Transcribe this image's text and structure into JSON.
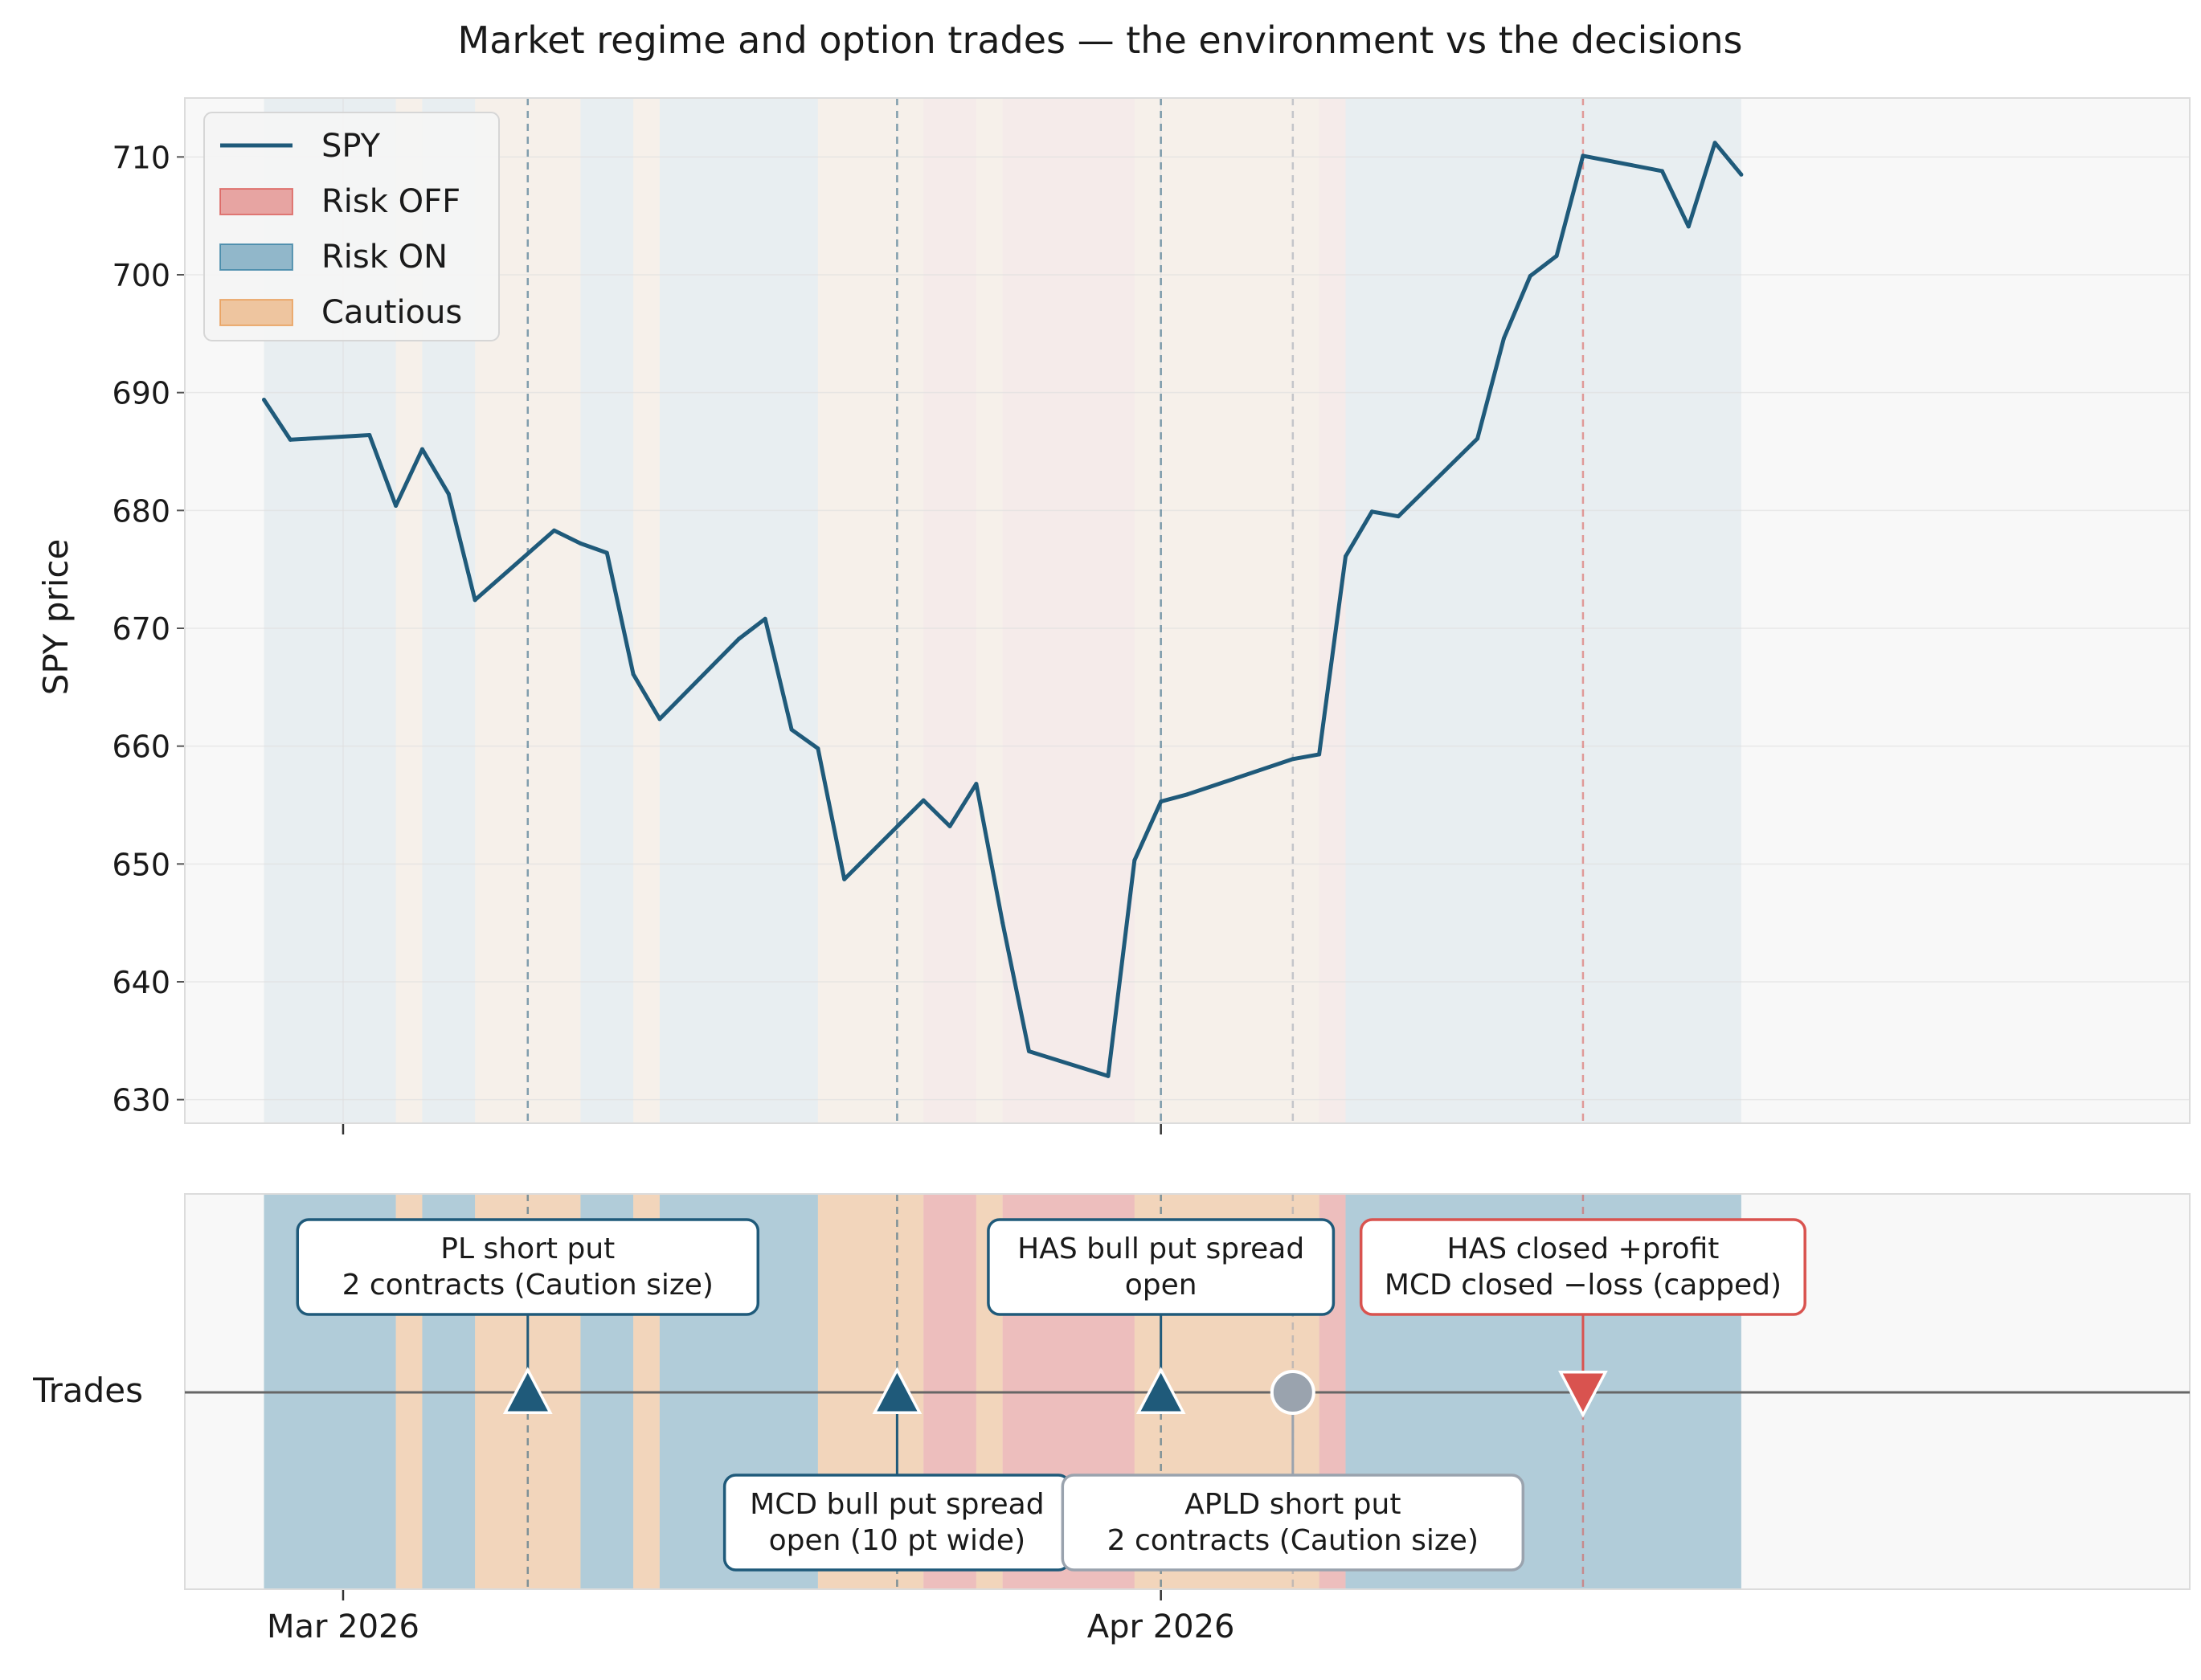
{
  "chart_data": {
    "type": "line",
    "title": "Market regime and option trades — the environment vs the decisions",
    "ylabel": "SPY price",
    "trades_label": "Trades",
    "ylim": [
      628,
      715
    ],
    "xlim": [
      "2026-02-23",
      "2026-05-10"
    ],
    "yticks": [
      630,
      640,
      650,
      660,
      670,
      680,
      690,
      700,
      710
    ],
    "xticks": [
      {
        "date": "2026-03-01",
        "label": "Mar 2026"
      },
      {
        "date": "2026-04-01",
        "label": "Apr 2026"
      }
    ],
    "grid": true,
    "legend": {
      "placement": "top-left",
      "entries": [
        {
          "label": "SPY",
          "kind": "line",
          "color": "#1f5a7a"
        },
        {
          "label": "Risk OFF",
          "kind": "patch",
          "color": "#d9534f"
        },
        {
          "label": "Risk ON",
          "kind": "patch",
          "color": "#2e7aa0"
        },
        {
          "label": "Cautious",
          "kind": "patch",
          "color": "#e8964a"
        }
      ]
    },
    "colors": {
      "line": "#1f5a7a",
      "risk_off": "#d9534f",
      "risk_on": "#2e7aa0",
      "cautious": "#e8964a",
      "neutral_trade": "#9aa3ae",
      "background": "#f8f8f8"
    },
    "regimes": [
      {
        "start": "2026-02-26",
        "end": "2026-03-03",
        "regime": "risk_on"
      },
      {
        "start": "2026-03-03",
        "end": "2026-03-04",
        "regime": "cautious"
      },
      {
        "start": "2026-03-04",
        "end": "2026-03-06",
        "regime": "risk_on"
      },
      {
        "start": "2026-03-06",
        "end": "2026-03-10",
        "regime": "cautious"
      },
      {
        "start": "2026-03-10",
        "end": "2026-03-12",
        "regime": "risk_on"
      },
      {
        "start": "2026-03-12",
        "end": "2026-03-13",
        "regime": "cautious"
      },
      {
        "start": "2026-03-13",
        "end": "2026-03-19",
        "regime": "risk_on"
      },
      {
        "start": "2026-03-19",
        "end": "2026-03-23",
        "regime": "cautious"
      },
      {
        "start": "2026-03-23",
        "end": "2026-03-25",
        "regime": "risk_off"
      },
      {
        "start": "2026-03-25",
        "end": "2026-03-26",
        "regime": "cautious"
      },
      {
        "start": "2026-03-26",
        "end": "2026-03-31",
        "regime": "risk_off"
      },
      {
        "start": "2026-03-31",
        "end": "2026-04-07",
        "regime": "cautious"
      },
      {
        "start": "2026-04-07",
        "end": "2026-04-08",
        "regime": "risk_off"
      },
      {
        "start": "2026-04-08",
        "end": "2026-04-23",
        "regime": "risk_on"
      }
    ],
    "series": [
      {
        "name": "SPY",
        "x": [
          "2026-02-26",
          "2026-02-27",
          "2026-03-02",
          "2026-03-03",
          "2026-03-04",
          "2026-03-05",
          "2026-03-06",
          "2026-03-09",
          "2026-03-10",
          "2026-03-11",
          "2026-03-12",
          "2026-03-13",
          "2026-03-16",
          "2026-03-17",
          "2026-03-18",
          "2026-03-19",
          "2026-03-20",
          "2026-03-23",
          "2026-03-24",
          "2026-03-25",
          "2026-03-26",
          "2026-03-27",
          "2026-03-30",
          "2026-03-31",
          "2026-04-01",
          "2026-04-02",
          "2026-04-06",
          "2026-04-07",
          "2026-04-08",
          "2026-04-09",
          "2026-04-10",
          "2026-04-13",
          "2026-04-14",
          "2026-04-15",
          "2026-04-16",
          "2026-04-17",
          "2026-04-20",
          "2026-04-21",
          "2026-04-22",
          "2026-04-23"
        ],
        "y": [
          689.4,
          686.0,
          686.4,
          680.4,
          685.2,
          681.4,
          672.4,
          678.3,
          677.2,
          676.4,
          666.1,
          662.3,
          669.1,
          670.8,
          661.4,
          659.8,
          648.7,
          655.4,
          653.2,
          656.8,
          645.0,
          634.1,
          632.0,
          650.3,
          655.3,
          655.9,
          658.9,
          659.3,
          676.1,
          679.9,
          679.5,
          686.1,
          694.6,
          699.9,
          701.6,
          710.1,
          708.8,
          704.1,
          711.2,
          708.5
        ]
      }
    ],
    "trades": [
      {
        "date": "2026-03-08",
        "marker": "triangle-up",
        "color": "#1f5a7a",
        "label_pos": "above",
        "label": [
          "PL short put",
          "2 contracts (Caution size)"
        ]
      },
      {
        "date": "2026-03-22",
        "marker": "triangle-up",
        "color": "#1f5a7a",
        "label_pos": "below",
        "label": [
          "MCD bull put spread",
          "open (10 pt wide)"
        ]
      },
      {
        "date": "2026-04-01",
        "marker": "triangle-up",
        "color": "#1f5a7a",
        "label_pos": "above",
        "label": [
          "HAS bull put spread",
          "open"
        ]
      },
      {
        "date": "2026-04-06",
        "marker": "circle",
        "color": "#9aa3ae",
        "label_pos": "below",
        "label": [
          "APLD short put",
          "2 contracts (Caution size)"
        ]
      },
      {
        "date": "2026-04-17",
        "marker": "triangle-down",
        "color": "#d9534f",
        "label_pos": "above",
        "label": [
          "HAS closed +profit",
          "MCD closed −loss (capped)"
        ]
      }
    ]
  }
}
